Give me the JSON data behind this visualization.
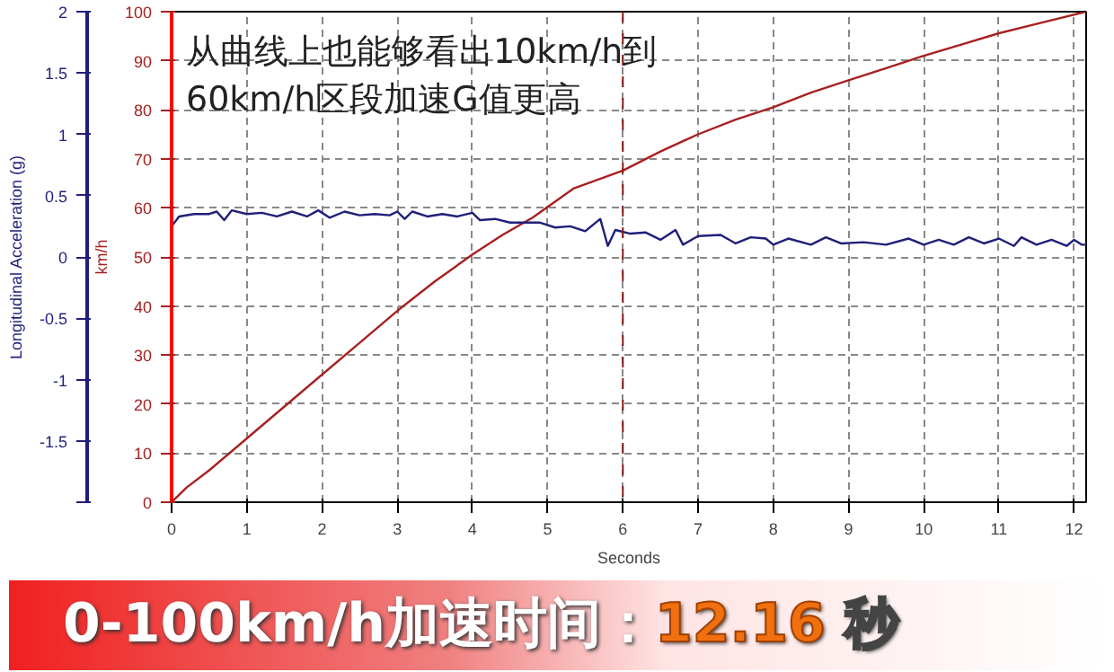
{
  "chart_data": {
    "type": "line",
    "xlabel": "Seconds",
    "ylabel": "km/h",
    "y2label": "Longitudinal Acceleration (g)",
    "xlim": [
      0,
      12.16
    ],
    "xticks": [
      0,
      1,
      2,
      3,
      4,
      5,
      6,
      7,
      8,
      9,
      10,
      11,
      12
    ],
    "ylim": [
      0,
      100
    ],
    "yticks": [
      0,
      10,
      20,
      30,
      40,
      50,
      60,
      70,
      80,
      90,
      100
    ],
    "y2lim": [
      -2,
      2
    ],
    "y2ticks": [
      {
        "value": -2,
        "label": null
      },
      -1.5,
      -1,
      -0.5,
      0,
      0.5,
      1,
      1.5,
      2
    ],
    "grid": true,
    "line_style": "solid",
    "series": [
      {
        "color": "#a82020",
        "x": [
          0,
          0.2,
          0.5,
          1,
          1.5,
          2,
          2.5,
          3,
          3.5,
          4,
          4.4,
          4.8,
          5.35,
          6,
          6.5,
          7,
          7.5,
          8,
          8.5,
          9,
          9.5,
          10,
          10.5,
          11,
          11.5,
          12.16
        ],
        "values": [
          0,
          3,
          6.5,
          13,
          19.5,
          26,
          32.5,
          39,
          45,
          50.5,
          54.5,
          58,
          64,
          67.6,
          71.5,
          75,
          78,
          80.5,
          83.5,
          86,
          88.5,
          91,
          93.3,
          95.6,
          97.5,
          100
        ]
      },
      {
        "color": "#1f1f7a",
        "axis": "y2",
        "x": [
          0,
          0.1,
          0.3,
          0.5,
          0.6,
          0.7,
          0.8,
          1.0,
          1.2,
          1.4,
          1.6,
          1.8,
          1.95,
          2.1,
          2.3,
          2.5,
          2.7,
          2.9,
          3.0,
          3.1,
          3.2,
          3.4,
          3.6,
          3.8,
          4.0,
          4.1,
          4.3,
          4.5,
          4.7,
          4.9,
          5.1,
          5.3,
          5.5,
          5.7,
          5.8,
          5.9,
          6.1,
          6.3,
          6.5,
          6.7,
          6.8,
          7.0,
          7.3,
          7.5,
          7.7,
          7.9,
          8.0,
          8.2,
          8.5,
          8.7,
          8.9,
          9.2,
          9.5,
          9.8,
          10.0,
          10.2,
          10.4,
          10.6,
          10.8,
          11.0,
          11.2,
          11.3,
          11.5,
          11.7,
          11.9,
          12.0,
          12.1,
          12.16
        ],
        "values": [
          0.25,
          0.33,
          0.35,
          0.35,
          0.37,
          0.3,
          0.38,
          0.35,
          0.36,
          0.33,
          0.37,
          0.33,
          0.38,
          0.32,
          0.37,
          0.34,
          0.35,
          0.34,
          0.37,
          0.31,
          0.37,
          0.33,
          0.35,
          0.33,
          0.36,
          0.3,
          0.31,
          0.28,
          0.28,
          0.28,
          0.24,
          0.25,
          0.21,
          0.31,
          0.09,
          0.22,
          0.19,
          0.2,
          0.14,
          0.22,
          0.1,
          0.17,
          0.18,
          0.11,
          0.16,
          0.15,
          0.1,
          0.15,
          0.1,
          0.16,
          0.11,
          0.12,
          0.1,
          0.15,
          0.1,
          0.14,
          0.1,
          0.16,
          0.11,
          0.15,
          0.09,
          0.16,
          0.1,
          0.14,
          0.09,
          0.14,
          0.1,
          0.1
        ]
      }
    ],
    "ref_lines": [
      {
        "axis": "x",
        "value": 6,
        "color": "#8b1a1a",
        "line_style": "dashed"
      }
    ],
    "annotations": [
      "从曲线上也能够看出10km/h到\n60km/h区段加速G值更高",
      "0-100km/h加速时间：",
      "12.16",
      "秒"
    ]
  }
}
